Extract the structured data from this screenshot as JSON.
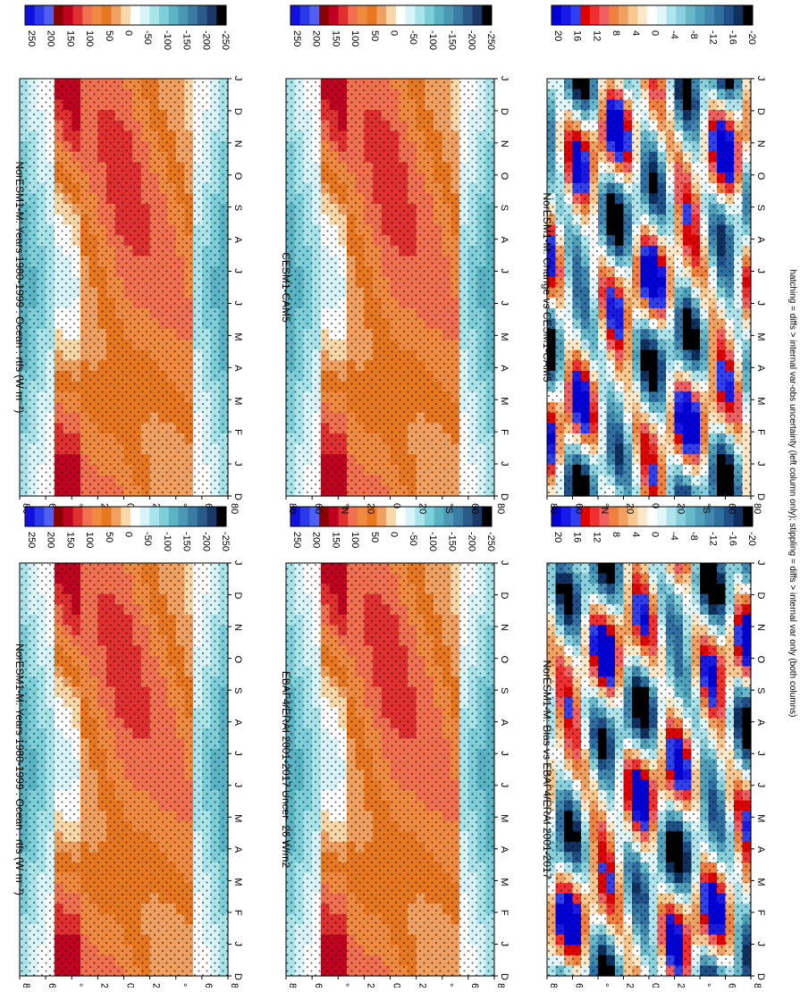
{
  "footer": "hatching = diffs > internal var-obs uncertainty (left column only); stippling = diffs > internal var only (both columns)",
  "chart_data": [
    {
      "type": "heatmap",
      "id": "top-left",
      "title": "NorESM1-M: Years 1980-1999 : Ocean : rtfs (W m⁻²)",
      "x": [
        "D",
        "J",
        "F",
        "M",
        "A",
        "M",
        "J",
        "J",
        "A",
        "S",
        "O",
        "N",
        "D",
        "J"
      ],
      "y_ticks": [
        "80",
        "60",
        "40",
        "20",
        "0",
        "20",
        "40",
        "60",
        "80"
      ],
      "y_tick_labels": [
        "80",
        "60",
        "°N",
        "20",
        "0",
        "20",
        "°S",
        "60",
        "80"
      ],
      "colorbar": {
        "labels": [
          "250",
          "200",
          "150",
          "100",
          "50",
          "0",
          "-50",
          "-100",
          "-150",
          "-200",
          "-250"
        ],
        "colors": [
          "#1010e0",
          "#2a3ae8",
          "#5060f0",
          "#8b0000",
          "#c00020",
          "#e03030",
          "#f07050",
          "#f08a40",
          "#e87820",
          "#f0a060",
          "#f8d8a8",
          "#ffffff",
          "#d8f4f8",
          "#a8e4ea",
          "#7ccfd8",
          "#5ab4c4",
          "#4a98b4",
          "#3a7ca4",
          "#2a5a88",
          "#1a3868",
          "#000000"
        ]
      }
    },
    {
      "type": "heatmap",
      "id": "top-right",
      "title": "NorESM1-M: Years 1980-1999 : Ocean : rtfs (W m⁻²)",
      "x": [
        "D",
        "J",
        "F",
        "M",
        "A",
        "M",
        "J",
        "J",
        "A",
        "S",
        "O",
        "N",
        "D",
        "J"
      ],
      "y_tick_labels": [
        "80",
        "60",
        "°N",
        "20",
        "0",
        "20",
        "°S",
        "60",
        "80"
      ],
      "colorbar": {
        "labels": [
          "250",
          "200",
          "150",
          "100",
          "50",
          "0",
          "-50",
          "-100",
          "-150",
          "-200",
          "-250"
        ]
      }
    },
    {
      "type": "heatmap",
      "id": "middle-left",
      "title": "EBAF4/ERAI 2001-2017 Uncer~26 W/m2",
      "x": [
        "D",
        "J",
        "F",
        "M",
        "A",
        "M",
        "J",
        "J",
        "A",
        "S",
        "O",
        "N",
        "D",
        "J"
      ],
      "y_tick_labels": [
        "80",
        "60",
        "°N",
        "20",
        "0",
        "20",
        "°S",
        "60",
        "80"
      ],
      "colorbar": {
        "labels": [
          "250",
          "200",
          "150",
          "100",
          "50",
          "0",
          "-50",
          "-100",
          "-150",
          "-200",
          "-250"
        ]
      }
    },
    {
      "type": "heatmap",
      "id": "middle-right",
      "title": "CESM1-CAM5",
      "x": [
        "D",
        "J",
        "F",
        "M",
        "A",
        "M",
        "J",
        "J",
        "A",
        "S",
        "O",
        "N",
        "D",
        "J"
      ],
      "y_tick_labels": [
        "80",
        "60",
        "°N",
        "20",
        "0",
        "20",
        "°S",
        "60",
        "80"
      ],
      "colorbar": {
        "labels": [
          "250",
          "200",
          "150",
          "100",
          "50",
          "0",
          "-50",
          "-100",
          "-150",
          "-200",
          "-250"
        ]
      }
    },
    {
      "type": "heatmap",
      "id": "bottom-left",
      "title": "NorESM1-M: Bias vs EBAF4/ERAI 2001-2017",
      "x": [
        "D",
        "J",
        "F",
        "M",
        "A",
        "M",
        "J",
        "J",
        "A",
        "S",
        "O",
        "N",
        "D",
        "J"
      ],
      "y_tick_labels": [
        "80",
        "60",
        "°N",
        "20",
        "0",
        "20",
        "°S",
        "60",
        "80"
      ],
      "colorbar": {
        "labels": [
          "20",
          "16",
          "12",
          "8",
          "4",
          "0",
          "-4",
          "-8",
          "-12",
          "-16",
          "-20"
        ],
        "colors": [
          "#0000d8",
          "#1a1ae8",
          "#3040f0",
          "#e00000",
          "#f03030",
          "#f06060",
          "#f08040",
          "#f0a060",
          "#f8c890",
          "#fce8c8",
          "#ffffff",
          "#e0f6f8",
          "#b0e4ec",
          "#88d0dc",
          "#68b8cc",
          "#50a0bc",
          "#4088b0",
          "#3070a0",
          "#205088",
          "#103060",
          "#000000"
        ]
      }
    },
    {
      "type": "heatmap",
      "id": "bottom-right",
      "title": "NorESM1-M: Change vs CESM1-CAM5",
      "x": [
        "D",
        "J",
        "F",
        "M",
        "A",
        "M",
        "J",
        "J",
        "A",
        "S",
        "O",
        "N",
        "D",
        "J"
      ],
      "y_tick_labels": [
        "80",
        "60",
        "°N",
        "20",
        "0",
        "20",
        "°S",
        "60",
        "80"
      ],
      "colorbar": {
        "labels": [
          "20",
          "16",
          "12",
          "8",
          "4",
          "0",
          "-4",
          "-8",
          "-12",
          "-16",
          "-20"
        ]
      }
    }
  ]
}
